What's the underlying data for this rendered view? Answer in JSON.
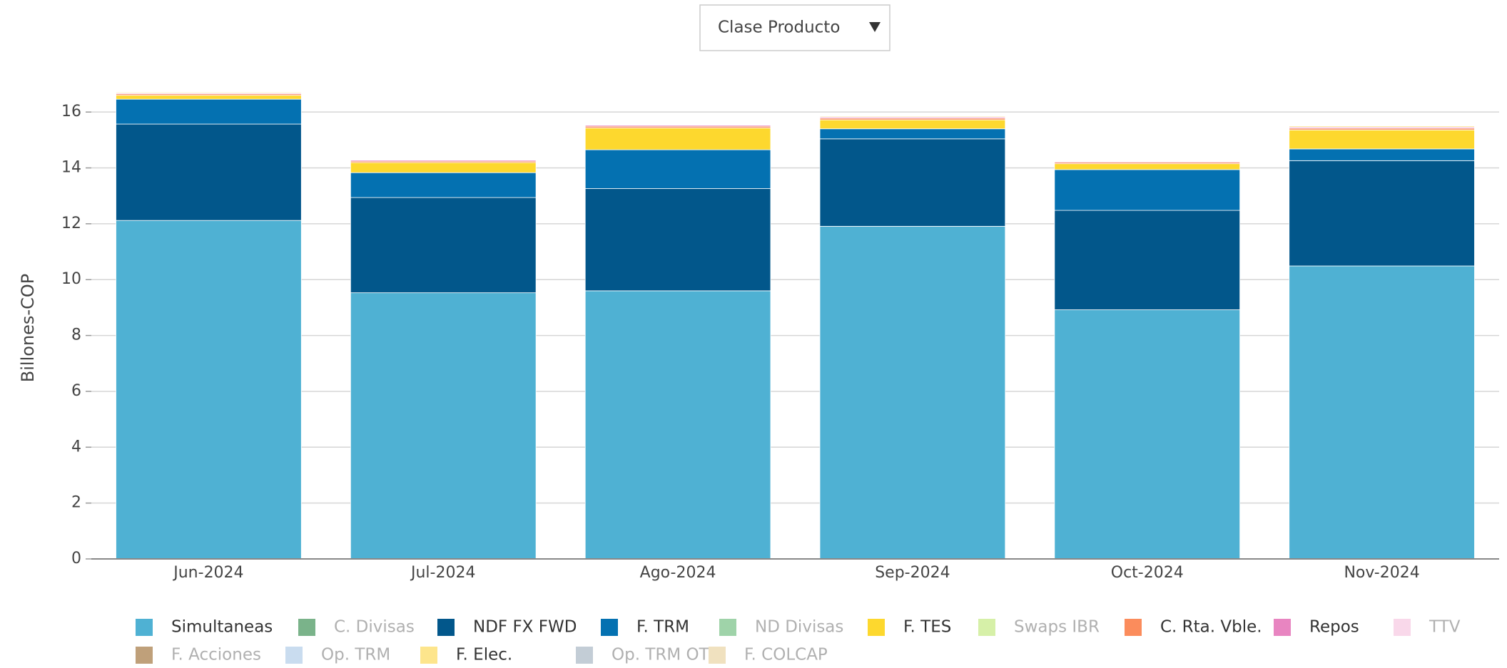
{
  "dropdown": {
    "label": "Clase Producto"
  },
  "chart_data": {
    "type": "bar",
    "stacked": true,
    "y_label": "Billones-COP",
    "categories": [
      "Jun-2024",
      "Jul-2024",
      "Ago-2024",
      "Sep-2024",
      "Oct-2024",
      "Nov-2024"
    ],
    "ylim": [
      0,
      17
    ],
    "yticks": [
      0,
      2,
      4,
      6,
      8,
      10,
      12,
      14,
      16
    ],
    "grid": true,
    "series": [
      {
        "name": "Simultaneas",
        "color": "#4fb1d3",
        "values": [
          12.12,
          9.53,
          9.6,
          11.91,
          8.92,
          10.49
        ]
      },
      {
        "name": "C. Divisas",
        "color": "#7ab38a",
        "hidden": true,
        "values": [
          null,
          null,
          null,
          null,
          null,
          null
        ]
      },
      {
        "name": "NDF FX FWD",
        "color": "#02578b",
        "values": [
          3.45,
          3.41,
          3.66,
          3.13,
          3.56,
          3.77
        ]
      },
      {
        "name": "F. TRM",
        "color": "#0471b1",
        "values": [
          0.89,
          0.89,
          1.39,
          0.36,
          1.46,
          0.42
        ]
      },
      {
        "name": "ND Divisas",
        "color": "#9fd3a9",
        "hidden": true,
        "values": [
          null,
          null,
          null,
          null,
          null,
          null
        ]
      },
      {
        "name": "F. TES",
        "color": "#fdd82e",
        "values": [
          0.14,
          0.36,
          0.78,
          0.32,
          0.21,
          0.68
        ]
      },
      {
        "name": "Swaps IBR",
        "color": "#d6f0a8",
        "hidden": true,
        "values": [
          null,
          null,
          null,
          null,
          null,
          null
        ]
      },
      {
        "name": "C. Rta. Vble.",
        "color": "#fb8c5c",
        "values": [
          0.05,
          0.05,
          0.06,
          0.06,
          0.05,
          0.06
        ]
      },
      {
        "name": "Repos",
        "color": "#e885c1",
        "values": [
          0.03,
          0.04,
          0.04,
          0.04,
          0.03,
          0.04
        ]
      },
      {
        "name": "TTV",
        "color": "#f9d8ea",
        "hidden": true,
        "values": [
          null,
          null,
          null,
          null,
          null,
          null
        ]
      },
      {
        "name": "F. Acciones",
        "color": "#bfa07a",
        "hidden": true,
        "values": [
          null,
          null,
          null,
          null,
          null,
          null
        ]
      },
      {
        "name": "Op. TRM",
        "color": "#c9dcef",
        "hidden": true,
        "values": [
          null,
          null,
          null,
          null,
          null,
          null
        ]
      },
      {
        "name": "F. Elec.",
        "color": "#fde58c",
        "values": [
          0.03,
          0.02,
          0.02,
          0.03,
          0.02,
          0.04
        ]
      },
      {
        "name": "Op. TRM OTC",
        "color": "#c3cdd6",
        "hidden": true,
        "values": [
          null,
          null,
          null,
          null,
          null,
          null
        ]
      },
      {
        "name": "F. COLCAP",
        "color": "#f0e1bf",
        "hidden": true,
        "values": [
          null,
          null,
          null,
          null,
          null,
          null
        ]
      }
    ]
  }
}
